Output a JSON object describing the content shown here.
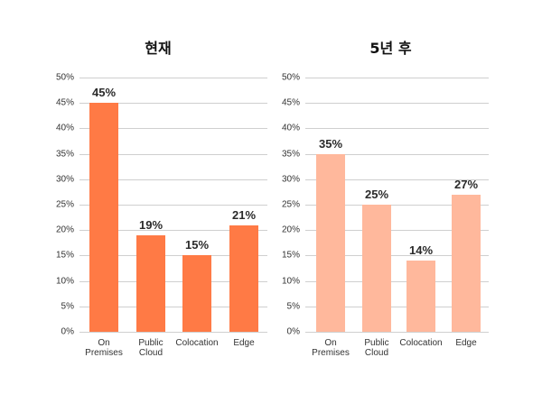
{
  "chart_data": [
    {
      "type": "bar",
      "title": "현재",
      "categories": [
        "On Premises",
        "Public Cloud",
        "Colocation",
        "Edge"
      ],
      "category_lines": [
        [
          "On",
          "Premises"
        ],
        [
          "Public",
          "Cloud"
        ],
        [
          "Colocation"
        ],
        [
          "Edge"
        ]
      ],
      "values": [
        45,
        19,
        15,
        21
      ],
      "value_labels": [
        "45%",
        "19%",
        "15%",
        "21%"
      ],
      "xlabel": "",
      "ylabel": "",
      "ylim": [
        0,
        50
      ],
      "yticks": [
        "0%",
        "5%",
        "10%",
        "15%",
        "20%",
        "25%",
        "30%",
        "35%",
        "40%",
        "45%",
        "50%"
      ],
      "grid": true,
      "legend": null,
      "color": "#FF7A45"
    },
    {
      "type": "bar",
      "title": "5년 후",
      "categories": [
        "On Premises",
        "Public Cloud",
        "Colocation",
        "Edge"
      ],
      "category_lines": [
        [
          "On",
          "Premises"
        ],
        [
          "Public",
          "Cloud"
        ],
        [
          "Colocation"
        ],
        [
          "Edge"
        ]
      ],
      "values": [
        35,
        25,
        14,
        27
      ],
      "value_labels": [
        "35%",
        "25%",
        "14%",
        "27%"
      ],
      "xlabel": "",
      "ylabel": "",
      "ylim": [
        0,
        50
      ],
      "yticks": [
        "0%",
        "5%",
        "10%",
        "15%",
        "20%",
        "25%",
        "30%",
        "35%",
        "40%",
        "45%",
        "50%"
      ],
      "grid": true,
      "legend": null,
      "color": "#FFB89C"
    }
  ]
}
